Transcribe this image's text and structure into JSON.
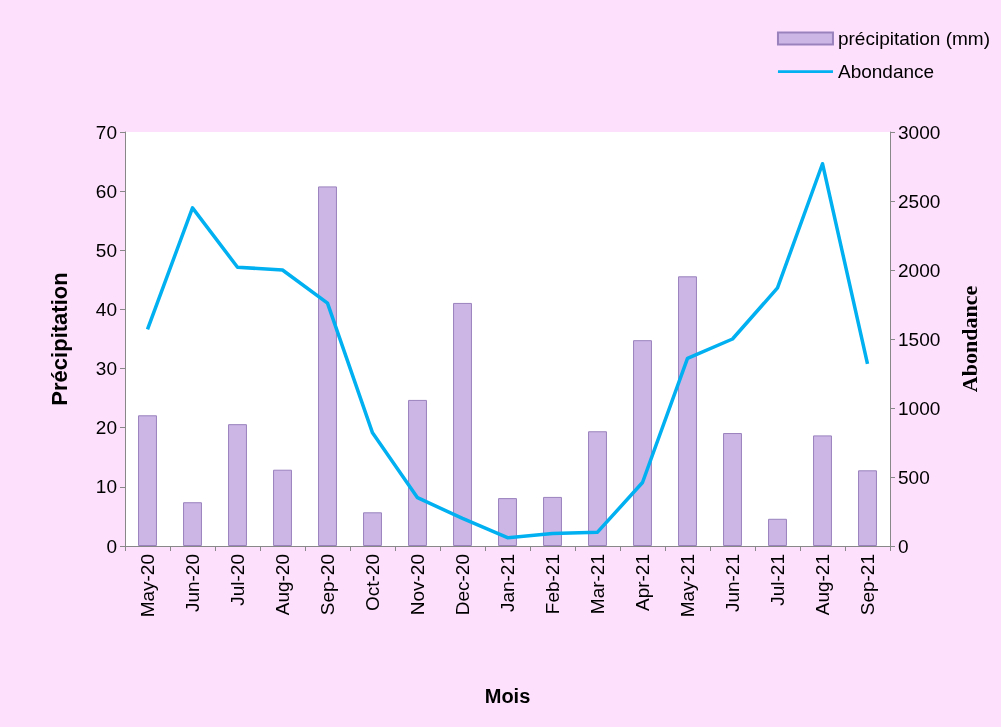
{
  "chart_data": {
    "type": "bar",
    "xlabel": "Mois",
    "ylabel": "Précipitation",
    "y2label": "Abondance",
    "categories": [
      "May-20",
      "Jun-20",
      "Jul-20",
      "Aug-20",
      "Sep-20",
      "Oct-20",
      "Nov-20",
      "Dec-20",
      "Jan-21",
      "Feb-21",
      "Mar-21",
      "Apr-21",
      "May-21",
      "Jun-21",
      "Jul-21",
      "Aug-21",
      "Sep-21"
    ],
    "series": [
      {
        "name": "précipitation (mm)",
        "color": "#cbb6e6",
        "values": [
          22.1,
          7.4,
          20.6,
          12.9,
          60.8,
          5.7,
          24.7,
          41.1,
          8.1,
          8.3,
          19.4,
          34.8,
          45.6,
          19.1,
          4.6,
          18.7,
          12.8
        ]
      },
      {
        "name": "Abondance",
        "type": "line",
        "axis": "y2",
        "color": "#00b0f0",
        "values": [
          1570,
          2450,
          2020,
          2000,
          1760,
          820,
          350,
          200,
          60,
          90,
          100,
          460,
          1360,
          1500,
          1870,
          2770,
          1320
        ]
      }
    ],
    "ylim": [
      0,
      70
    ],
    "yticks": [
      0,
      10,
      20,
      30,
      40,
      50,
      60,
      70
    ],
    "y2lim": [
      0,
      3000
    ],
    "y2ticks": [
      0,
      500,
      1000,
      1500,
      2000,
      2500,
      3000
    ],
    "grid": false,
    "legend": "top right",
    "marker": "none",
    "line_style": "solid"
  }
}
